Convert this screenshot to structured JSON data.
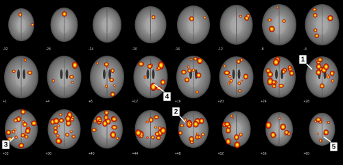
{
  "slice_labels": [
    "-32",
    "-28",
    "-24",
    "-20",
    "-16",
    "-12",
    "-8",
    "-4",
    "+1",
    "+4",
    "+8",
    "+12",
    "+16",
    "+20",
    "+24",
    "+28",
    "+32",
    "+36",
    "+40",
    "+44",
    "+48",
    "+52",
    "+56",
    "+60"
  ],
  "callouts": [
    "1",
    "2",
    "3",
    "4",
    "5"
  ]
}
